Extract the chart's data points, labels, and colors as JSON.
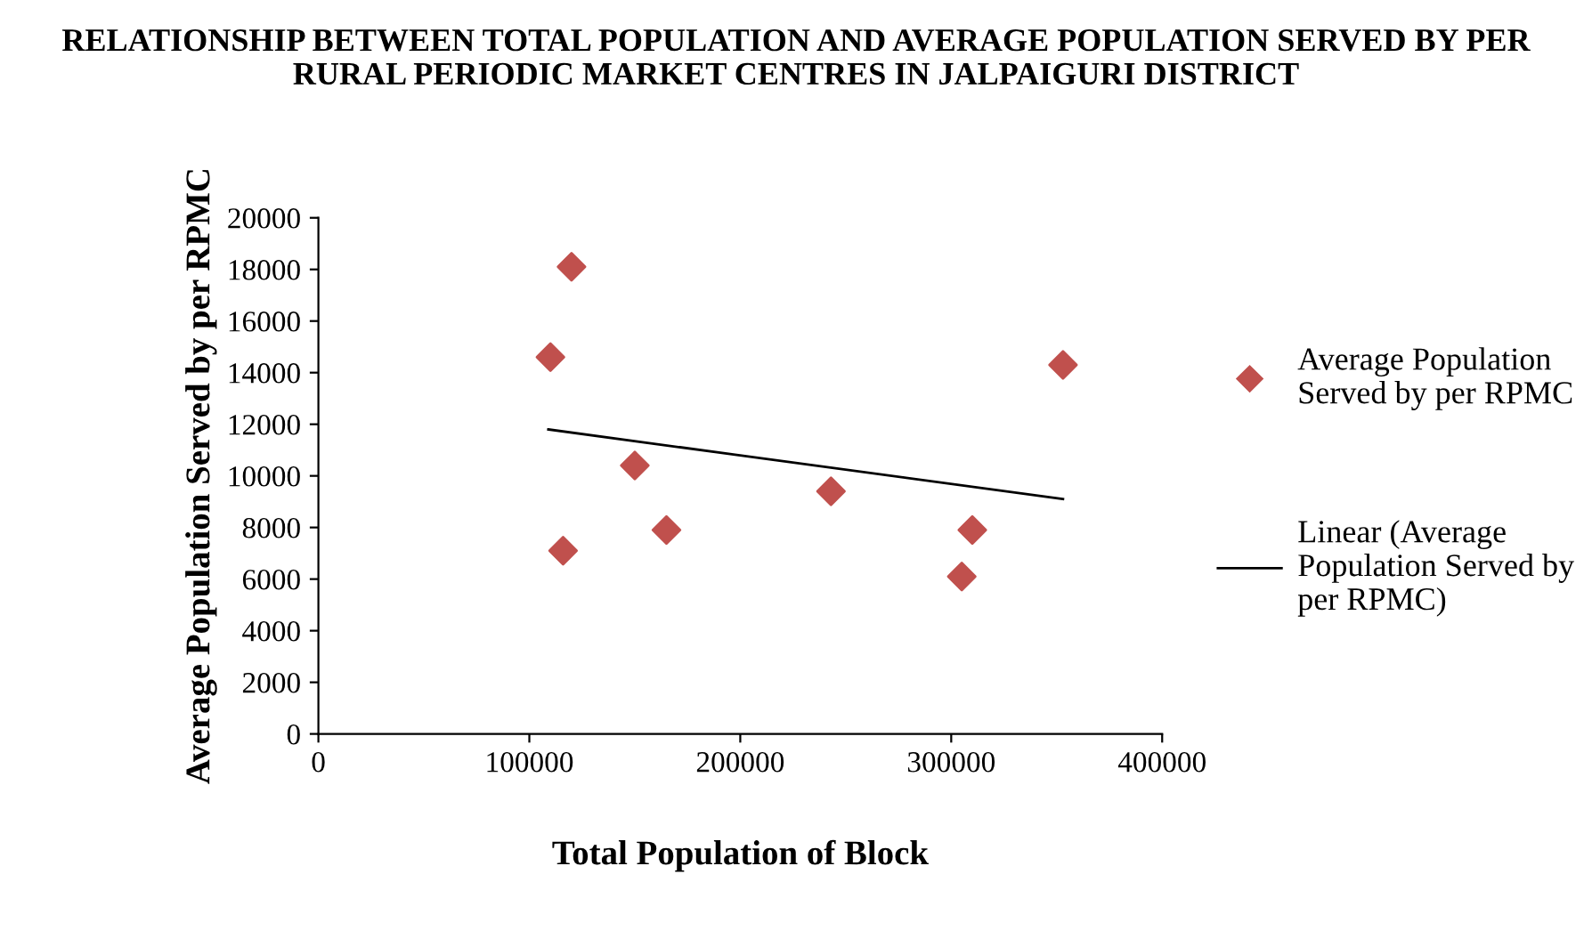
{
  "chart_data": {
    "type": "scatter",
    "title": "RELATIONSHIP BETWEEN TOTAL POPULATION AND AVERAGE POPULATION SERVED BY PER RURAL PERIODIC MARKET CENTRES IN JALPAIGURI DISTRICT",
    "xlabel": "Total Population of Block",
    "ylabel": "Average Population Served by per RPMC",
    "series": [
      {
        "name": "Average Population Served by per RPMC",
        "marker": "diamond",
        "color": "#c0504d",
        "x": [
          110000,
          120000,
          116000,
          150000,
          165000,
          243000,
          310000,
          305000,
          353000
        ],
        "values": [
          14600,
          18100,
          7100,
          10400,
          7900,
          9400,
          7900,
          6100,
          14300
        ]
      },
      {
        "name": "Linear (Average Population Served by per RPMC)",
        "type": "line",
        "marker": "none",
        "color": "#000000",
        "x": [
          109000,
          353000
        ],
        "values": [
          11800,
          9100
        ]
      }
    ],
    "xlim": [
      0,
      400000
    ],
    "xticks": [
      0,
      100000,
      200000,
      300000,
      400000
    ],
    "ylim": [
      0,
      20000
    ],
    "yticks": [
      0,
      2000,
      4000,
      6000,
      8000,
      10000,
      12000,
      14000,
      16000,
      18000,
      20000
    ],
    "grid": false,
    "legend": "right"
  }
}
